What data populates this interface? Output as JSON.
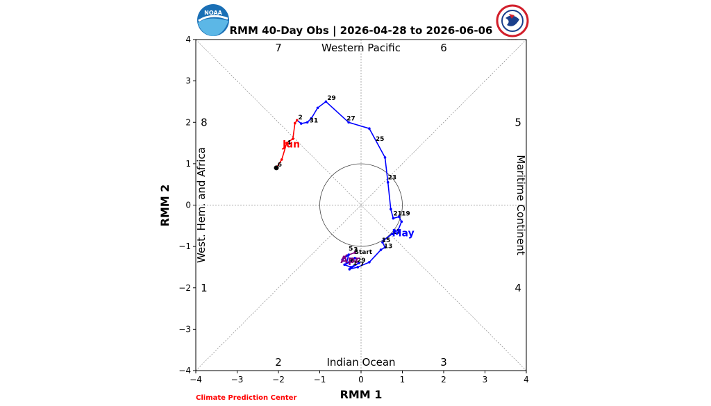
{
  "chart_data": {
    "type": "line",
    "title": "RMM 40-Day Obs | 2026-04-28 to 2026-06-06",
    "xlabel": "RMM 1",
    "ylabel": "RMM 2",
    "xlim": [
      -4,
      4
    ],
    "ylim": [
      -4,
      4
    ],
    "xticks": [
      "−4",
      "−3",
      "−2",
      "−1",
      "0",
      "1",
      "2",
      "3",
      "4"
    ],
    "yticks": [
      "−4",
      "−3",
      "−2",
      "−1",
      "0",
      "1",
      "2",
      "3",
      "4"
    ],
    "regions": {
      "top": "Western Pacific",
      "bottom": "Indian Ocean",
      "left": "West. Hem. and Africa",
      "right": "Maritime Continent"
    },
    "phases": [
      {
        "label": "1",
        "x": -3.8,
        "y": -2.0
      },
      {
        "label": "2",
        "x": -2.0,
        "y": -3.8
      },
      {
        "label": "3",
        "x": 2.0,
        "y": -3.8
      },
      {
        "label": "4",
        "x": 3.8,
        "y": -2.0
      },
      {
        "label": "5",
        "x": 3.8,
        "y": 2.0
      },
      {
        "label": "6",
        "x": 2.0,
        "y": 3.8
      },
      {
        "label": "7",
        "x": -2.0,
        "y": 3.8
      },
      {
        "label": "8",
        "x": -3.8,
        "y": 2.0
      }
    ],
    "series": [
      {
        "name": "Apr",
        "color": "#800080",
        "points": [
          {
            "x": -0.15,
            "y": -1.15
          },
          {
            "x": -0.35,
            "y": -1.22
          },
          {
            "x": -0.45,
            "y": -1.32
          }
        ]
      },
      {
        "name": "May",
        "color": "#0000ff",
        "points": [
          {
            "x": -0.45,
            "y": -1.32
          },
          {
            "x": -0.3,
            "y": -1.2
          },
          {
            "x": -0.35,
            "y": -1.4
          },
          {
            "x": -0.15,
            "y": -1.28
          },
          {
            "x": -0.28,
            "y": -1.38
          },
          {
            "x": -0.4,
            "y": -1.44
          },
          {
            "x": -0.25,
            "y": -1.5
          },
          {
            "x": -0.05,
            "y": -1.4
          },
          {
            "x": -0.28,
            "y": -1.55
          },
          {
            "x": -0.08,
            "y": -1.5
          },
          {
            "x": 0.2,
            "y": -1.38
          },
          {
            "x": 0.48,
            "y": -1.08
          },
          {
            "x": 0.58,
            "y": -1.02
          },
          {
            "x": 0.52,
            "y": -0.9
          },
          {
            "x": 0.55,
            "y": -0.85
          },
          {
            "x": 0.75,
            "y": -0.7
          },
          {
            "x": 0.9,
            "y": -0.6
          },
          {
            "x": 0.98,
            "y": -0.4
          },
          {
            "x": 0.92,
            "y": -0.28
          },
          {
            "x": 0.78,
            "y": -0.32
          },
          {
            "x": 0.72,
            "y": -0.1
          },
          {
            "x": 0.65,
            "y": 0.55
          },
          {
            "x": 0.58,
            "y": 1.15
          },
          {
            "x": 0.2,
            "y": 1.85
          },
          {
            "x": -0.3,
            "y": 2.0
          },
          {
            "x": -0.85,
            "y": 2.5
          },
          {
            "x": -1.05,
            "y": 2.35
          },
          {
            "x": -1.2,
            "y": 2.1
          },
          {
            "x": -1.3,
            "y": 2.0
          },
          {
            "x": -1.45,
            "y": 1.97
          },
          {
            "x": -1.55,
            "y": 2.05
          }
        ]
      },
      {
        "name": "Jun",
        "color": "#ff0000",
        "points": [
          {
            "x": -1.55,
            "y": 2.05
          },
          {
            "x": -1.6,
            "y": 1.98
          },
          {
            "x": -1.65,
            "y": 1.6
          },
          {
            "x": -1.8,
            "y": 1.5
          },
          {
            "x": -1.92,
            "y": 1.1
          },
          {
            "x": -2.05,
            "y": 0.9
          }
        ]
      }
    ],
    "start": {
      "label": "Start",
      "x": -0.15,
      "y": -1.15
    },
    "end": {
      "x": -2.05,
      "y": 0.9
    },
    "day_labels": [
      {
        "text": "29",
        "x": -0.82,
        "y": 2.54
      },
      {
        "text": "27",
        "x": -0.35,
        "y": 2.05
      },
      {
        "text": "25",
        "x": 0.35,
        "y": 1.55
      },
      {
        "text": "23",
        "x": 0.65,
        "y": 0.62
      },
      {
        "text": "21",
        "x": 0.78,
        "y": -0.25
      },
      {
        "text": "19",
        "x": 0.98,
        "y": -0.25
      },
      {
        "text": "17",
        "x": 0.75,
        "y": -0.7
      },
      {
        "text": "15",
        "x": 0.5,
        "y": -0.9
      },
      {
        "text": "13",
        "x": 0.55,
        "y": -1.04
      },
      {
        "text": "5",
        "x": -0.3,
        "y": -1.1
      },
      {
        "text": "3",
        "x": -0.18,
        "y": -1.12
      },
      {
        "text": "Start",
        "x": -0.16,
        "y": -1.18
      },
      {
        "text": "9",
        "x": -0.3,
        "y": -1.38
      },
      {
        "text": "29",
        "x": -0.1,
        "y": -1.38
      },
      {
        "text": "1",
        "x": -0.2,
        "y": -1.45
      },
      {
        "text": "7",
        "x": -0.03,
        "y": -1.48
      },
      {
        "text": "31",
        "x": -1.25,
        "y": 2.0
      },
      {
        "text": "2",
        "x": -1.52,
        "y": 2.07
      },
      {
        "text": "4",
        "x": -1.8,
        "y": 1.46
      },
      {
        "text": "6",
        "x": -2.02,
        "y": 0.93
      }
    ],
    "month_labels": [
      {
        "text": "Apr",
        "x": -0.5,
        "y": -1.32,
        "color": "#800080"
      },
      {
        "text": "May",
        "x": 0.75,
        "y": -0.67,
        "color": "#0000ff"
      },
      {
        "text": "Jun",
        "x": -1.9,
        "y": 1.48,
        "color": "#ff0000"
      }
    ],
    "unit_circle_radius": 1,
    "grid": false
  },
  "footer": {
    "text": "Climate Prediction Center",
    "color": "#ff0000"
  },
  "logos": {
    "left": "noaa-logo",
    "left_text": "NOAA",
    "right": "nws-logo",
    "right_text": "NATIONAL WEATHER SERVICE"
  }
}
